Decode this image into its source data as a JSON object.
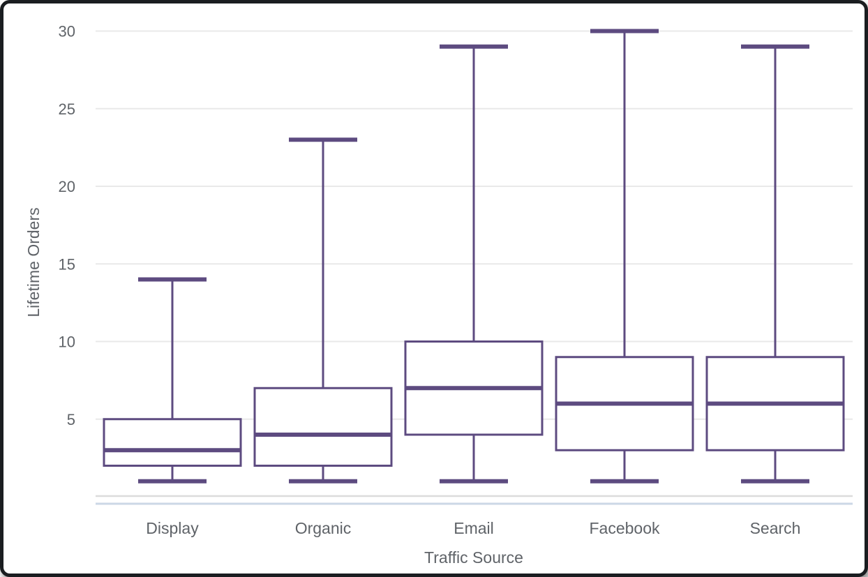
{
  "chart_data": {
    "type": "boxplot",
    "title": "",
    "xlabel": "Traffic Source",
    "ylabel": "Lifetime Orders",
    "categories": [
      "Display",
      "Organic",
      "Email",
      "Facebook",
      "Search"
    ],
    "series": [
      {
        "name": "Display",
        "min": 1,
        "q1": 2,
        "median": 3,
        "q3": 5,
        "max": 14
      },
      {
        "name": "Organic",
        "min": 1,
        "q1": 2,
        "median": 4,
        "q3": 7,
        "max": 23
      },
      {
        "name": "Email",
        "min": 1,
        "q1": 4,
        "median": 7,
        "q3": 10,
        "max": 29
      },
      {
        "name": "Facebook",
        "min": 1,
        "q1": 3,
        "median": 6,
        "q3": 9,
        "max": 30
      },
      {
        "name": "Search",
        "min": 1,
        "q1": 3,
        "median": 6,
        "q3": 9,
        "max": 29
      }
    ],
    "yticks": [
      5,
      10,
      15,
      20,
      25,
      30
    ],
    "ylim": [
      0,
      30.5
    ],
    "grid": "horizontal",
    "legend": "none"
  },
  "colors": {
    "box_stroke": "#5d4b80",
    "box_fill": "#ffffff",
    "grid_line": "#e9e9e9",
    "baseline": "#dcdcdc",
    "axis_line": "#ccd7e6",
    "label_text": "#5f6368",
    "frame": "#1a1d20",
    "background": "#ffffff"
  }
}
